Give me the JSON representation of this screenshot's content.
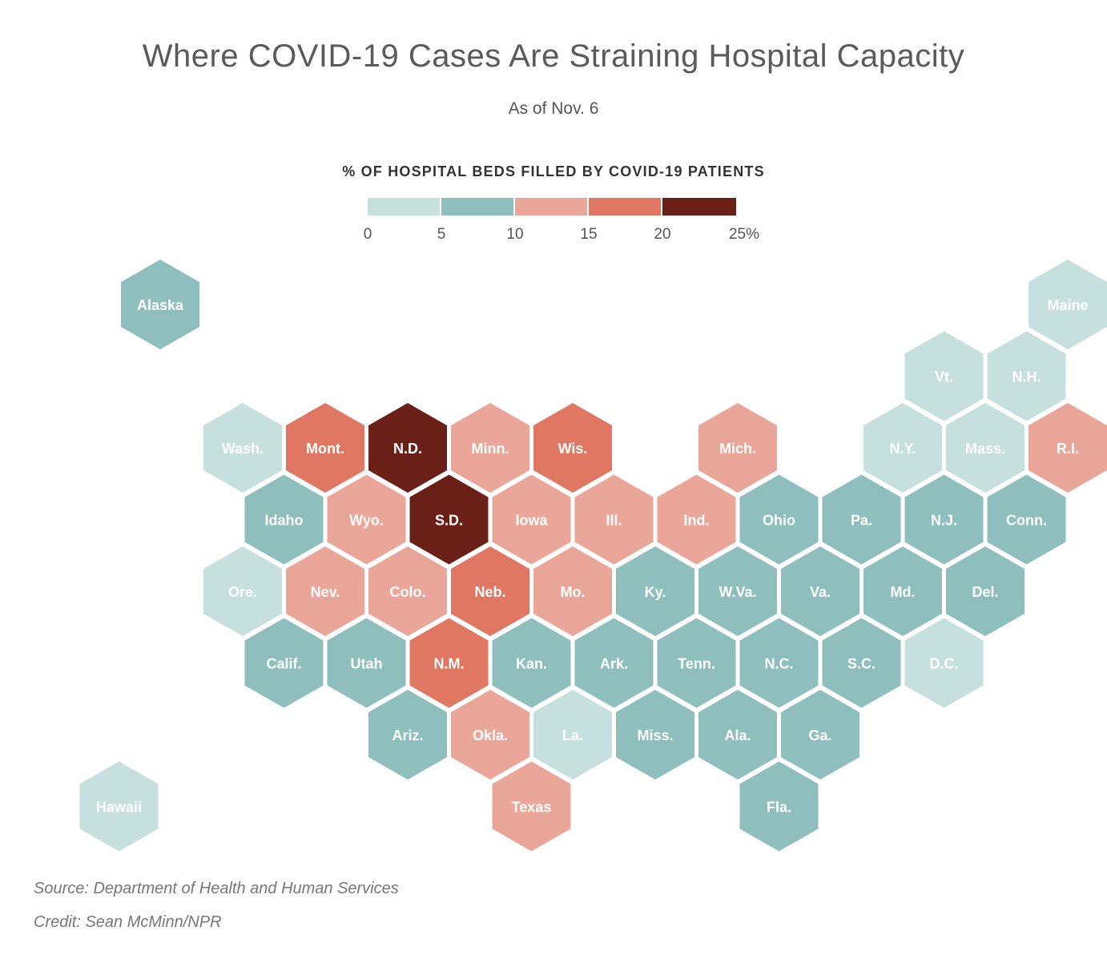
{
  "title": "Where COVID-19 Cases Are Straining Hospital Capacity",
  "subtitle": "As of Nov. 6",
  "legend": {
    "title": "% OF HOSPITAL BEDS FILLED BY COVID-19 PATIENTS",
    "bins": [
      {
        "range": [
          0,
          5
        ],
        "color": "#c6e0de"
      },
      {
        "range": [
          5,
          10
        ],
        "color": "#8ebfbd"
      },
      {
        "range": [
          10,
          15
        ],
        "color": "#eba69a"
      },
      {
        "range": [
          15,
          20
        ],
        "color": "#e07762"
      },
      {
        "range": [
          20,
          25
        ],
        "color": "#6a2016"
      }
    ],
    "ticks": [
      "0",
      "5",
      "10",
      "15",
      "20",
      "25%"
    ]
  },
  "map_data": {
    "type": "hex-tile-choropleth",
    "states": [
      {
        "label": "Alaska",
        "bin": 1,
        "row": 0,
        "col": 1
      },
      {
        "label": "Maine",
        "bin": 0,
        "row": 0,
        "col": 12
      },
      {
        "label": "Vt.",
        "bin": 0,
        "row": 1,
        "col": 10
      },
      {
        "label": "N.H.",
        "bin": 0,
        "row": 1,
        "col": 11
      },
      {
        "label": "Wash.",
        "bin": 0,
        "row": 2,
        "col": 2
      },
      {
        "label": "Mont.",
        "bin": 3,
        "row": 2,
        "col": 3
      },
      {
        "label": "N.D.",
        "bin": 4,
        "row": 2,
        "col": 4
      },
      {
        "label": "Minn.",
        "bin": 2,
        "row": 2,
        "col": 5
      },
      {
        "label": "Wis.",
        "bin": 3,
        "row": 2,
        "col": 6
      },
      {
        "label": "Mich.",
        "bin": 2,
        "row": 2,
        "col": 8
      },
      {
        "label": "N.Y.",
        "bin": 0,
        "row": 2,
        "col": 10
      },
      {
        "label": "Mass.",
        "bin": 0,
        "row": 2,
        "col": 11
      },
      {
        "label": "R.I.",
        "bin": 2,
        "row": 2,
        "col": 12
      },
      {
        "label": "Idaho",
        "bin": 1,
        "row": 3,
        "col": 2
      },
      {
        "label": "Wyo.",
        "bin": 2,
        "row": 3,
        "col": 3
      },
      {
        "label": "S.D.",
        "bin": 4,
        "row": 3,
        "col": 4
      },
      {
        "label": "Iowa",
        "bin": 2,
        "row": 3,
        "col": 5
      },
      {
        "label": "Ill.",
        "bin": 2,
        "row": 3,
        "col": 6
      },
      {
        "label": "Ind.",
        "bin": 2,
        "row": 3,
        "col": 7
      },
      {
        "label": "Ohio",
        "bin": 1,
        "row": 3,
        "col": 8
      },
      {
        "label": "Pa.",
        "bin": 1,
        "row": 3,
        "col": 9
      },
      {
        "label": "N.J.",
        "bin": 1,
        "row": 3,
        "col": 10
      },
      {
        "label": "Conn.",
        "bin": 1,
        "row": 3,
        "col": 11
      },
      {
        "label": "Ore.",
        "bin": 0,
        "row": 4,
        "col": 2
      },
      {
        "label": "Nev.",
        "bin": 2,
        "row": 4,
        "col": 3
      },
      {
        "label": "Colo.",
        "bin": 2,
        "row": 4,
        "col": 4
      },
      {
        "label": "Neb.",
        "bin": 3,
        "row": 4,
        "col": 5
      },
      {
        "label": "Mo.",
        "bin": 2,
        "row": 4,
        "col": 6
      },
      {
        "label": "Ky.",
        "bin": 1,
        "row": 4,
        "col": 7
      },
      {
        "label": "W.Va.",
        "bin": 1,
        "row": 4,
        "col": 8
      },
      {
        "label": "Va.",
        "bin": 1,
        "row": 4,
        "col": 9
      },
      {
        "label": "Md.",
        "bin": 1,
        "row": 4,
        "col": 10
      },
      {
        "label": "Del.",
        "bin": 1,
        "row": 4,
        "col": 11
      },
      {
        "label": "Calif.",
        "bin": 1,
        "row": 5,
        "col": 2
      },
      {
        "label": "Utah",
        "bin": 1,
        "row": 5,
        "col": 3
      },
      {
        "label": "N.M.",
        "bin": 3,
        "row": 5,
        "col": 4
      },
      {
        "label": "Kan.",
        "bin": 1,
        "row": 5,
        "col": 5
      },
      {
        "label": "Ark.",
        "bin": 1,
        "row": 5,
        "col": 6
      },
      {
        "label": "Tenn.",
        "bin": 1,
        "row": 5,
        "col": 7
      },
      {
        "label": "N.C.",
        "bin": 1,
        "row": 5,
        "col": 8
      },
      {
        "label": "S.C.",
        "bin": 1,
        "row": 5,
        "col": 9
      },
      {
        "label": "D.C.",
        "bin": 0,
        "row": 5,
        "col": 10
      },
      {
        "label": "Ariz.",
        "bin": 1,
        "row": 6,
        "col": 4
      },
      {
        "label": "Okla.",
        "bin": 2,
        "row": 6,
        "col": 5
      },
      {
        "label": "La.",
        "bin": 0,
        "row": 6,
        "col": 6
      },
      {
        "label": "Miss.",
        "bin": 1,
        "row": 6,
        "col": 7
      },
      {
        "label": "Ala.",
        "bin": 1,
        "row": 6,
        "col": 8
      },
      {
        "label": "Ga.",
        "bin": 1,
        "row": 6,
        "col": 9
      },
      {
        "label": "Hawaii",
        "bin": 0,
        "row": 7,
        "col": 0
      },
      {
        "label": "Texas",
        "bin": 2,
        "row": 7,
        "col": 5
      },
      {
        "label": "Fla.",
        "bin": 1,
        "row": 7,
        "col": 8
      }
    ]
  },
  "source": "Source: Department of Health and Human Services",
  "credit": "Credit: Sean McMinn/NPR"
}
